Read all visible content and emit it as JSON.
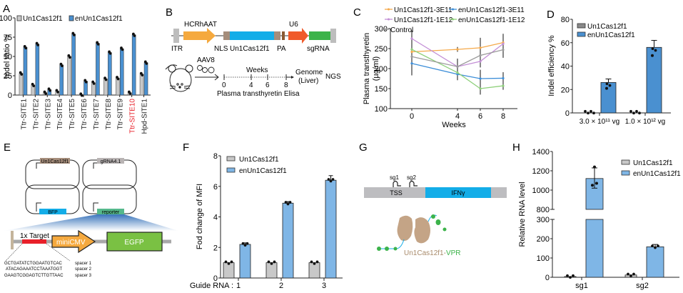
{
  "panel_labels": {
    "A": "A",
    "B": "B",
    "C": "C",
    "D": "D",
    "E": "E",
    "F": "F",
    "G": "G",
    "H": "H"
  },
  "colors": {
    "gray_bar": "#c8c8c8",
    "blue_bar": "#4a90d0",
    "light_blue_bar": "#7fb6e6",
    "highlight_red": "#e8202a",
    "orange": "#f5a94a",
    "blue_line": "#3d8ed8",
    "purple": "#c38fd6",
    "green": "#8ed07a",
    "gray_line": "#9a9a9a"
  },
  "chart_data": [
    {
      "id": "A",
      "type": "bar",
      "title": "",
      "xlabel": "",
      "ylabel": "Indel ratio %",
      "ylim": [
        0,
        100
      ],
      "yticks": [
        "0",
        "25",
        "50",
        "75",
        "100"
      ],
      "legend": [
        "Un1Cas12f1",
        "enUn1Cas12f1"
      ],
      "legend_position": "top",
      "categories": [
        "Ttr-SITE1",
        "Ttr-SITE2",
        "Ttr-SITE3",
        "Ttr-SITE4",
        "Ttr-SITE5",
        "Ttr-SITE6",
        "Ttr-SITE7",
        "Ttr-SITE8",
        "Ttr-SITE9",
        "Ttr-SITE10",
        "Hpd-SITE1"
      ],
      "highlight_category": "Ttr-SITE10",
      "series": [
        {
          "name": "Un1Cas12f1",
          "values": [
            28,
            13,
            3,
            5,
            50,
            0.5,
            16,
            21,
            22,
            3,
            27
          ]
        },
        {
          "name": "enUn1Cas12f1",
          "values": [
            62,
            66,
            7,
            39,
            79,
            18,
            67,
            55,
            60,
            78,
            42
          ]
        }
      ]
    },
    {
      "id": "C",
      "type": "line",
      "xlabel": "Weeks",
      "ylabel": "Plasma transthyretin (µg/ml)",
      "ylim": [
        100,
        300
      ],
      "yticks": [
        "100",
        "150",
        "200",
        "250",
        "300"
      ],
      "x": [
        0,
        4,
        6,
        8
      ],
      "xticks": [
        "0",
        "4",
        "6",
        "8"
      ],
      "legend_position": "top",
      "series": [
        {
          "name": "Un1Cas12f1-3E11",
          "values": [
            242,
            248,
            252,
            265
          ]
        },
        {
          "name": "enUn1Cas12f1-3E11",
          "values": [
            213,
            186,
            175,
            176
          ]
        },
        {
          "name": "Un1Cas12f1-1E12",
          "values": [
            275,
            205,
            218,
            262
          ]
        },
        {
          "name": "enUn1Cas12f1-1E12",
          "values": [
            248,
            190,
            150,
            157
          ]
        },
        {
          "name": "Control",
          "values": [
            230,
            205,
            233,
            247
          ]
        }
      ]
    },
    {
      "id": "D",
      "type": "bar",
      "ylabel": "Indel efficiency %",
      "ylim": [
        0,
        80
      ],
      "yticks": [
        "0",
        "20",
        "40",
        "60",
        "80"
      ],
      "categories": [
        "3.0 × 10¹¹ vg",
        "1.0 × 10¹² vg"
      ],
      "legend": [
        "Un1Cas12f1",
        "enUn1Cas12f1"
      ],
      "legend_position": "top-left",
      "series": [
        {
          "name": "Un1Cas12f1",
          "values": [
            0.3,
            1
          ]
        },
        {
          "name": "enUn1Cas12f1",
          "values": [
            26,
            56
          ]
        }
      ]
    },
    {
      "id": "F",
      "type": "bar",
      "ylabel": "Fod change of MFI",
      "xlabel_prefix": "Guide RNA :",
      "ylim": [
        0,
        8
      ],
      "yticks": [
        "0",
        "2",
        "4",
        "6",
        "8"
      ],
      "categories": [
        "1",
        "2",
        "3"
      ],
      "legend": [
        "Un1Cas12f1",
        "enUn1Cas12f1"
      ],
      "legend_position": "top-left",
      "series": [
        {
          "name": "Un1Cas12f1",
          "values": [
            1,
            1,
            1
          ]
        },
        {
          "name": "enUn1Cas12f1",
          "values": [
            2.2,
            4.9,
            6.4
          ]
        }
      ]
    },
    {
      "id": "H",
      "type": "bar",
      "ylabel": "Relative RNA level",
      "ylim": [
        0,
        1400
      ],
      "axis_break": [
        300,
        800
      ],
      "yticks_lower": [
        "0",
        "100",
        "200",
        "300"
      ],
      "yticks_upper": [
        "800",
        "1000",
        "1200",
        "1400"
      ],
      "categories": [
        "sg1",
        "sg2"
      ],
      "legend": [
        "Un1Cas12f1",
        "enUn1Cas12f1"
      ],
      "legend_position": "top-right",
      "series": [
        {
          "name": "Un1Cas12f1",
          "values": [
            4,
            12
          ]
        },
        {
          "name": "enUn1Cas12f1",
          "values": [
            1120,
            158
          ]
        }
      ]
    }
  ],
  "panel_b": {
    "labels": {
      "hcrhaat": "HCRhAAT",
      "u6": "U6",
      "itr": "ITR",
      "nls": "NLS",
      "cas": "Un1Cas12f1",
      "pa": "PA",
      "sgrna": "sgRNA"
    },
    "aav": "AAV8",
    "weeks": "Weeks",
    "ticks": [
      "0",
      "4",
      "6",
      "8"
    ],
    "genome": "Genome",
    "liver": "(Liver)",
    "ngs": "NGS",
    "elisa": "Plasma transthyretin Elisa"
  },
  "panel_e": {
    "plasmids": [
      "Un1Cas12f1",
      "gRNA4.1",
      "BFP",
      "reporter"
    ],
    "target": "1x Target",
    "promoter": "miniCMV",
    "gene": "EGFP",
    "spacers": [
      {
        "seq": "GCTGATATCTGGAATGTCAC",
        "label": "spacer 1"
      },
      {
        "seq": "ATACAGAAATCCTAAATGGT",
        "label": "spacer 2"
      },
      {
        "seq": "GAAGTCGGAGTCTTGTTAAC",
        "label": "spacer 3"
      }
    ]
  },
  "panel_g": {
    "sg1": "sg1",
    "sg2": "sg2",
    "tss": "TSS",
    "gene": "IFNγ",
    "fusion_cas": "Un1Cas12f1",
    "fusion_sep": "-",
    "fusion_vpr": "VPR"
  }
}
